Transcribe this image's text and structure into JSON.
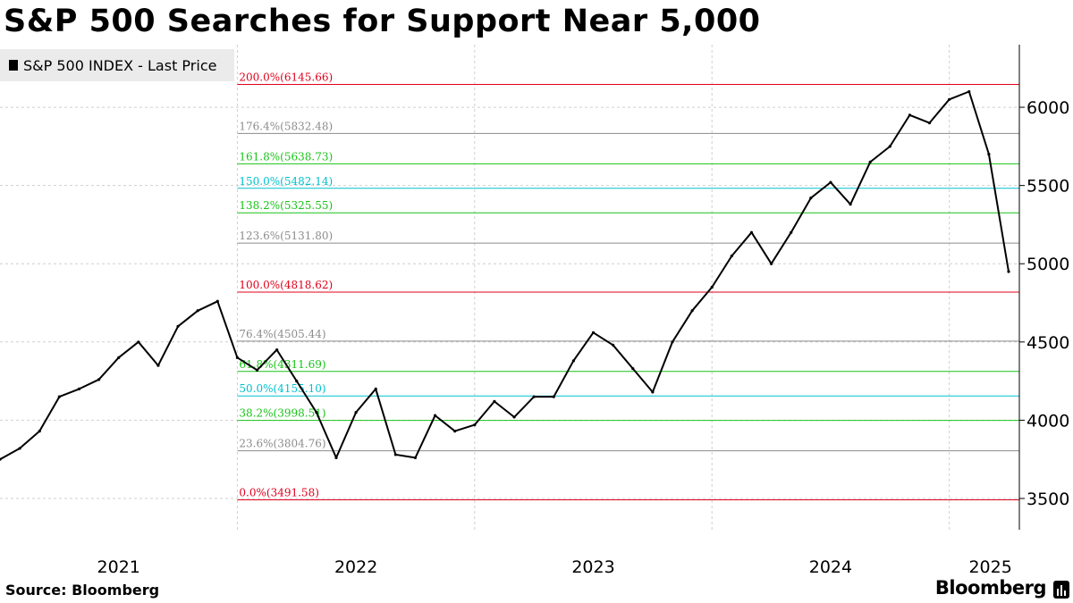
{
  "title": "S&P 500 Searches for Support Near 5,000",
  "legend": {
    "label": "S&P 500 INDEX - Last Price",
    "color": "#000000"
  },
  "source": "Source: Bloomberg",
  "brand": "Bloomberg",
  "brand_icon": "bloomberg-chart-icon",
  "chart_data": {
    "type": "line",
    "title": "S&P 500 Searches for Support Near 5,000",
    "series": [
      {
        "name": "S&P 500 INDEX - Last Price",
        "color": "#000000",
        "x": [
          "2021-01",
          "2021-02",
          "2021-03",
          "2021-04",
          "2021-05",
          "2021-06",
          "2021-07",
          "2021-08",
          "2021-09",
          "2021-10",
          "2021-11",
          "2021-12",
          "2022-01",
          "2022-02",
          "2022-03",
          "2022-04",
          "2022-05",
          "2022-06",
          "2022-07",
          "2022-08",
          "2022-09",
          "2022-10",
          "2022-11",
          "2022-12",
          "2023-01",
          "2023-02",
          "2023-03",
          "2023-04",
          "2023-05",
          "2023-06",
          "2023-07",
          "2023-08",
          "2023-09",
          "2023-10",
          "2023-11",
          "2023-12",
          "2024-01",
          "2024-02",
          "2024-03",
          "2024-04",
          "2024-05",
          "2024-06",
          "2024-07",
          "2024-08",
          "2024-09",
          "2024-10",
          "2024-11",
          "2024-12",
          "2025-01",
          "2025-02",
          "2025-03",
          "2025-04"
        ],
        "values": [
          3750,
          3820,
          3930,
          4150,
          4200,
          4260,
          4400,
          4500,
          4350,
          4600,
          4700,
          4760,
          4400,
          4320,
          4450,
          4250,
          4050,
          3760,
          4050,
          4200,
          3780,
          3760,
          4030,
          3930,
          3970,
          4120,
          4020,
          4150,
          4150,
          4380,
          4560,
          4480,
          4330,
          4180,
          4500,
          4700,
          4850,
          5050,
          5200,
          5000,
          5200,
          5420,
          5520,
          5380,
          5650,
          5750,
          5950,
          5900,
          6050,
          6100,
          5700,
          4950
        ]
      }
    ],
    "xlabel": "",
    "ylabel": "",
    "ylim": [
      3300,
      6400
    ],
    "yticks": [
      3500,
      4000,
      4500,
      5000,
      5500,
      6000
    ],
    "ytick_labels": [
      "3500",
      "4000",
      "4500",
      "5000",
      "5500",
      "6000"
    ],
    "xtick_labels": [
      "2021",
      "2022",
      "2023",
      "2024",
      "2025"
    ],
    "year_boundaries": [
      "2022-01",
      "2023-01",
      "2024-01",
      "2025-01"
    ],
    "grid": true,
    "legend_position": "top-left",
    "fib_start": "2022-01",
    "fib_levels": [
      {
        "label": "200.0%(6145.66)",
        "value": 6145.66,
        "color": "#e0001b"
      },
      {
        "label": "176.4%(5832.48)",
        "value": 5832.48,
        "color": "#8c8c8c"
      },
      {
        "label": "161.8%(5638.73)",
        "value": 5638.73,
        "color": "#18c418"
      },
      {
        "label": "150.0%(5482.14)",
        "value": 5482.14,
        "color": "#00c0d0"
      },
      {
        "label": "138.2%(5325.55)",
        "value": 5325.55,
        "color": "#18c418"
      },
      {
        "label": "123.6%(5131.80)",
        "value": 5131.8,
        "color": "#8c8c8c"
      },
      {
        "label": "100.0%(4818.62)",
        "value": 4818.62,
        "color": "#e0001b"
      },
      {
        "label": "76.4%(4505.44)",
        "value": 4505.44,
        "color": "#8c8c8c"
      },
      {
        "label": "61.8%(4311.69)",
        "value": 4311.69,
        "color": "#18c418"
      },
      {
        "label": "50.0%(4155.10)",
        "value": 4155.1,
        "color": "#00c0d0"
      },
      {
        "label": "38.2%(3998.51)",
        "value": 3998.51,
        "color": "#18c418"
      },
      {
        "label": "23.6%(3804.76)",
        "value": 3804.76,
        "color": "#8c8c8c"
      },
      {
        "label": "0.0%(3491.58)",
        "value": 3491.58,
        "color": "#e0001b"
      }
    ]
  }
}
